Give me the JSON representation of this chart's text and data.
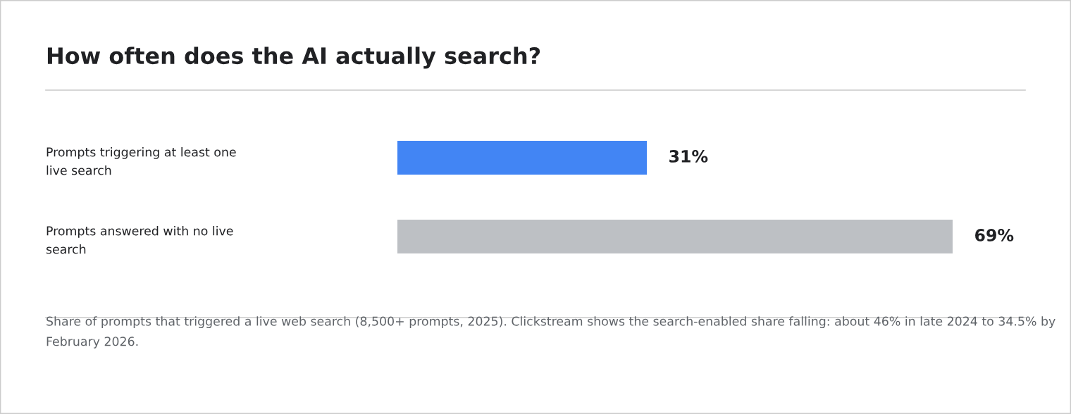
{
  "chart_data": {
    "type": "bar",
    "orientation": "horizontal",
    "title": "How often does the AI actually search?",
    "categories": [
      "Prompts triggering at least one\nlive search",
      "Prompts answered with no live\nsearch"
    ],
    "values": [
      31,
      69
    ],
    "colors": [
      "#4285f4",
      "#bdc0c4"
    ],
    "data_labels": true,
    "value_labels": [
      "31%",
      "69%"
    ],
    "annotations": [
      "Share of prompts that triggered a live web search (8,500+ prompts, 2025). Clickstream shows the search-enabled share falling: about 46% in late 2024 to 34.5% by February 2026."
    ]
  }
}
